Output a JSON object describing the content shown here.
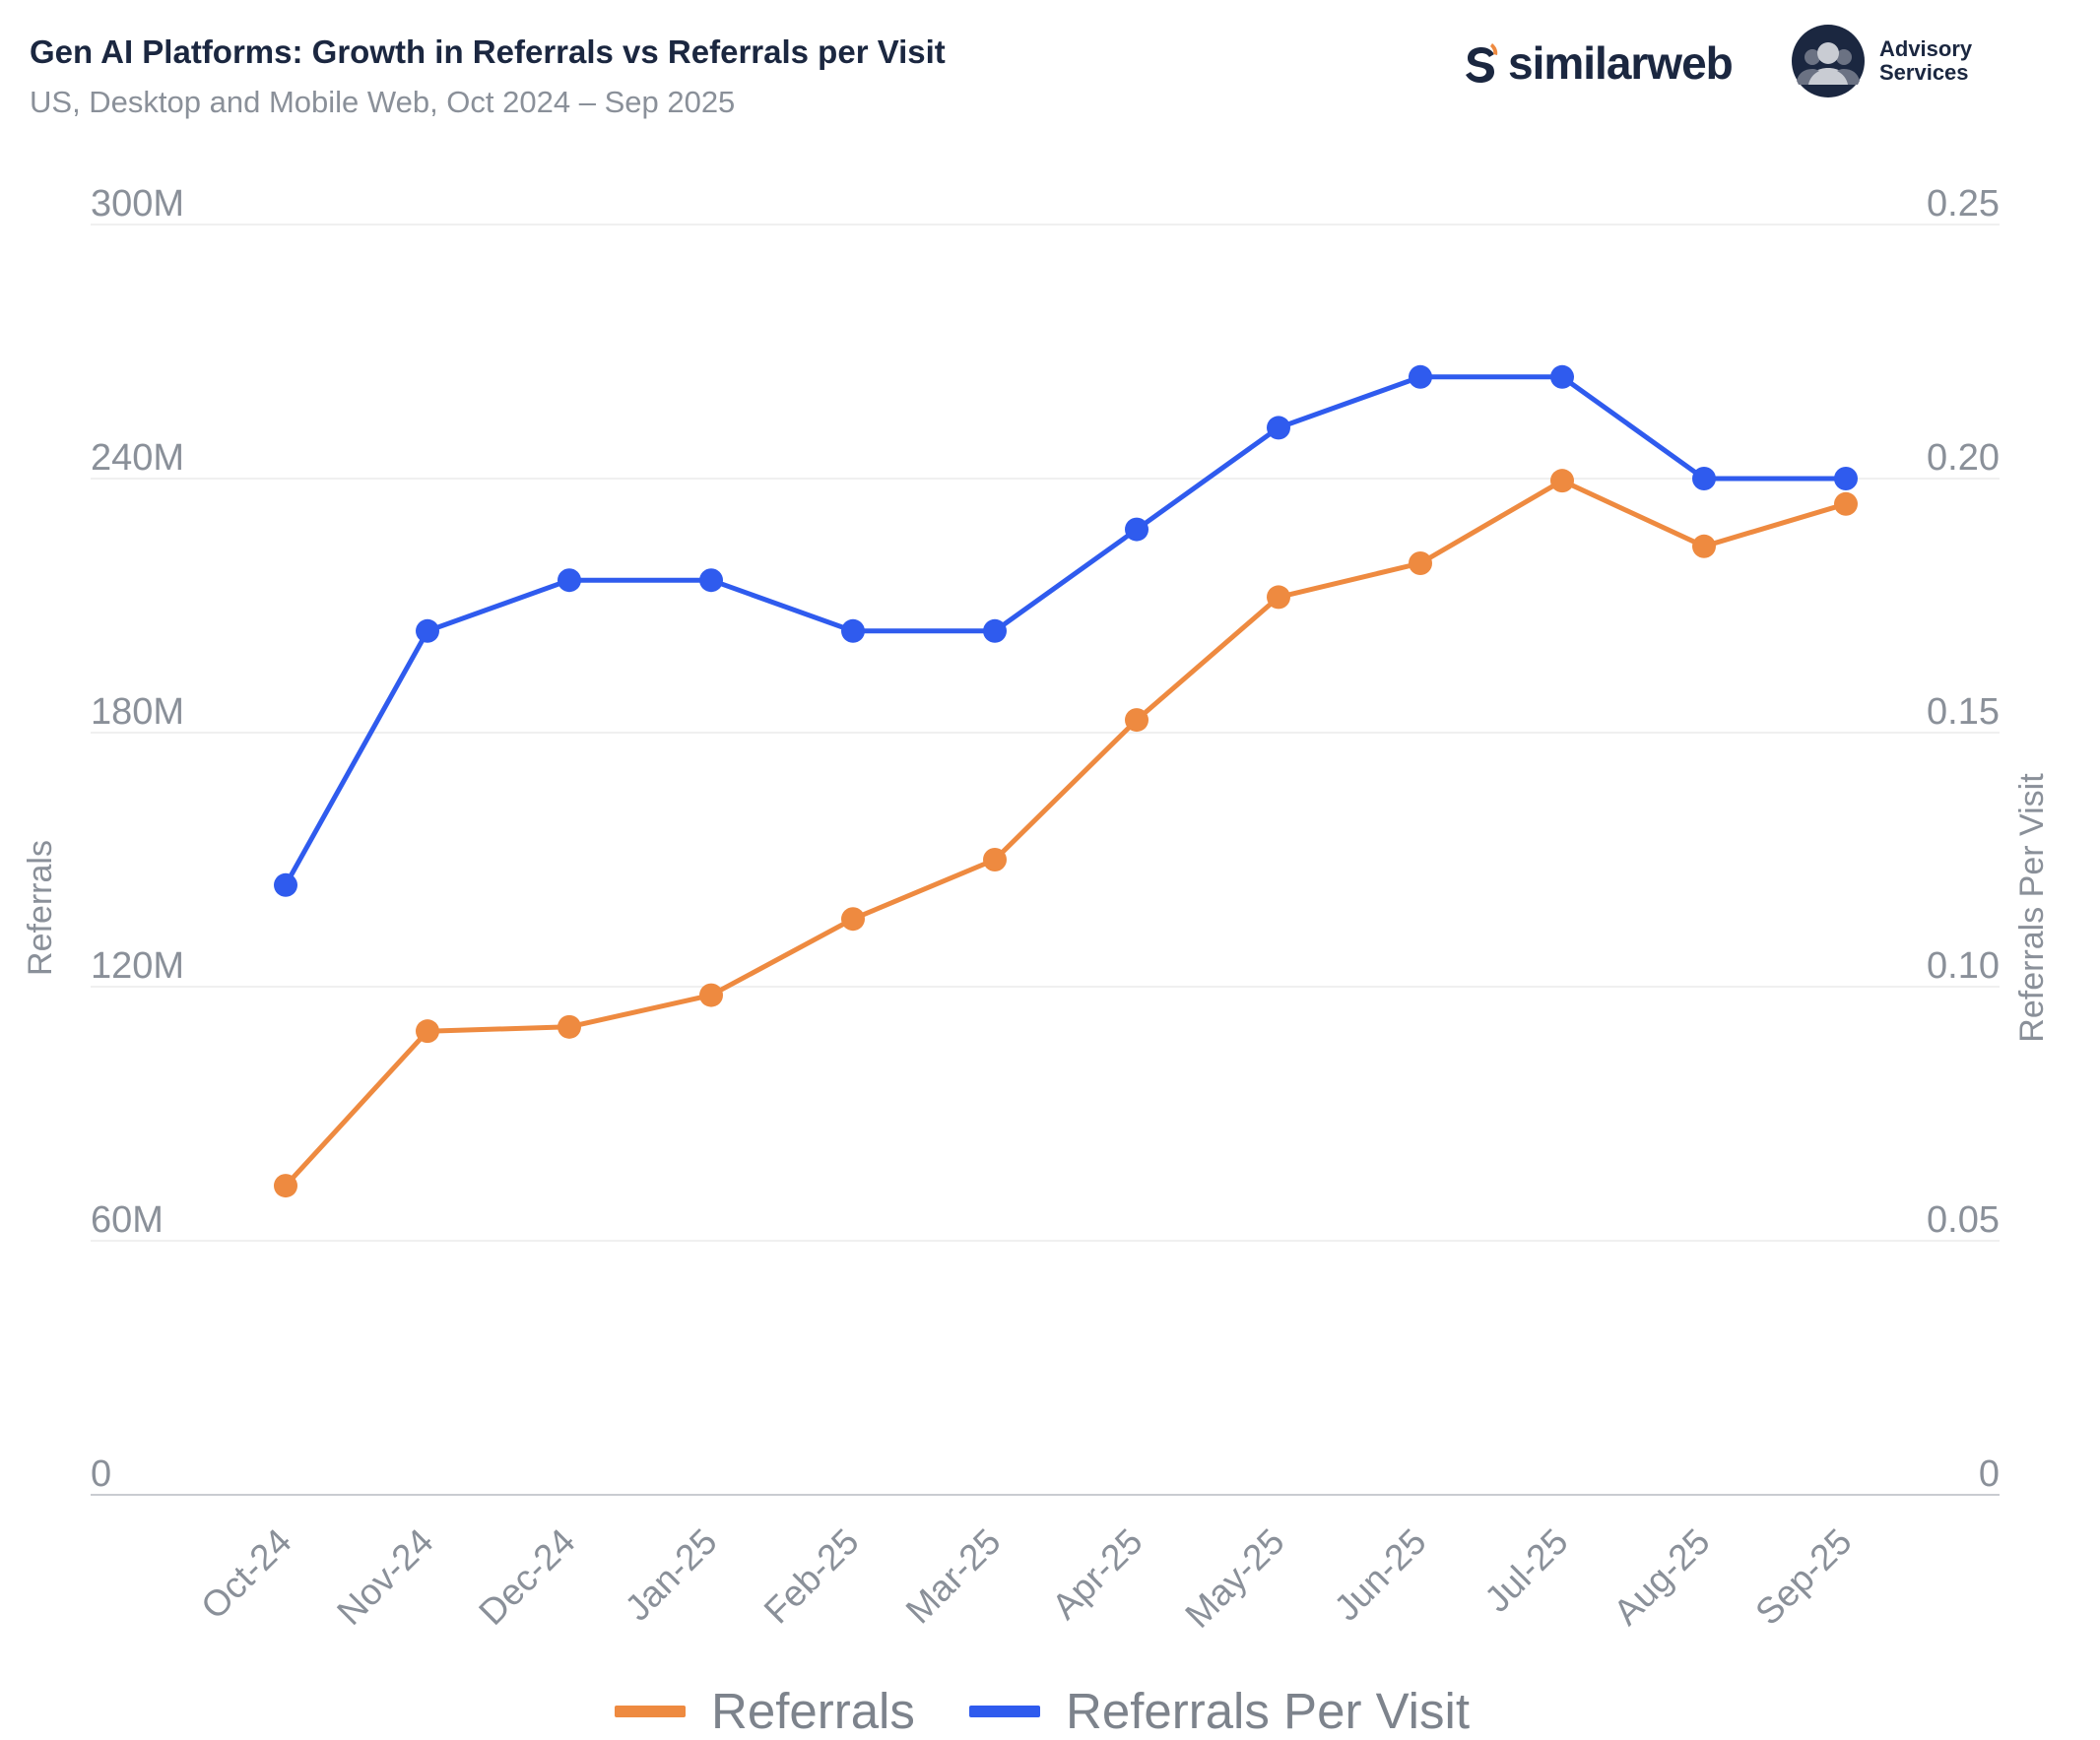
{
  "header": {
    "title": "Gen AI Platforms: Growth in Referrals vs Referrals per Visit",
    "subtitle": "US, Desktop and Mobile Web, Oct 2024 – Sep 2025"
  },
  "brand": {
    "name": "similarweb",
    "advisory_line1": "Advisory",
    "advisory_line2": "Services",
    "logo_icon": "similarweb-s-logo-icon",
    "advisory_icon": "advisory-people-icon"
  },
  "colors": {
    "referrals": "#EE8A40",
    "per_visit": "#2F5BEE",
    "axis_text": "#8a9099",
    "grid": "#ececec"
  },
  "chart_data": {
    "type": "line",
    "categories": [
      "Oct-24",
      "Nov-24",
      "Dec-24",
      "Jan-25",
      "Feb-25",
      "Mar-25",
      "Apr-25",
      "May-25",
      "Jun-25",
      "Jul-25",
      "Aug-25",
      "Sep-25"
    ],
    "series": [
      {
        "name": "Referrals",
        "axis": "left",
        "values": [
          73000000,
          109500000,
          110500000,
          118000000,
          136000000,
          150000000,
          183000000,
          212000000,
          220000000,
          239500000,
          224000000,
          234000000
        ]
      },
      {
        "name": "Referrals Per Visit",
        "axis": "right",
        "values": [
          0.12,
          0.17,
          0.18,
          0.18,
          0.17,
          0.17,
          0.19,
          0.21,
          0.22,
          0.22,
          0.2,
          0.2
        ]
      }
    ],
    "y_left": {
      "label": "Referrals",
      "range": [
        0,
        300000000
      ],
      "ticks": [
        0,
        60000000,
        120000000,
        180000000,
        240000000,
        300000000
      ],
      "tick_labels": [
        "0",
        "60M",
        "120M",
        "180M",
        "240M",
        "300M"
      ]
    },
    "y_right": {
      "label": "Referrals Per Visit",
      "range": [
        0,
        0.25
      ],
      "ticks": [
        0,
        0.05,
        0.1,
        0.15,
        0.2,
        0.25
      ],
      "tick_labels": [
        "0",
        "0.05",
        "0.10",
        "0.15",
        "0.20",
        "0.25"
      ]
    },
    "grid": true,
    "legend": "bottom-center"
  }
}
